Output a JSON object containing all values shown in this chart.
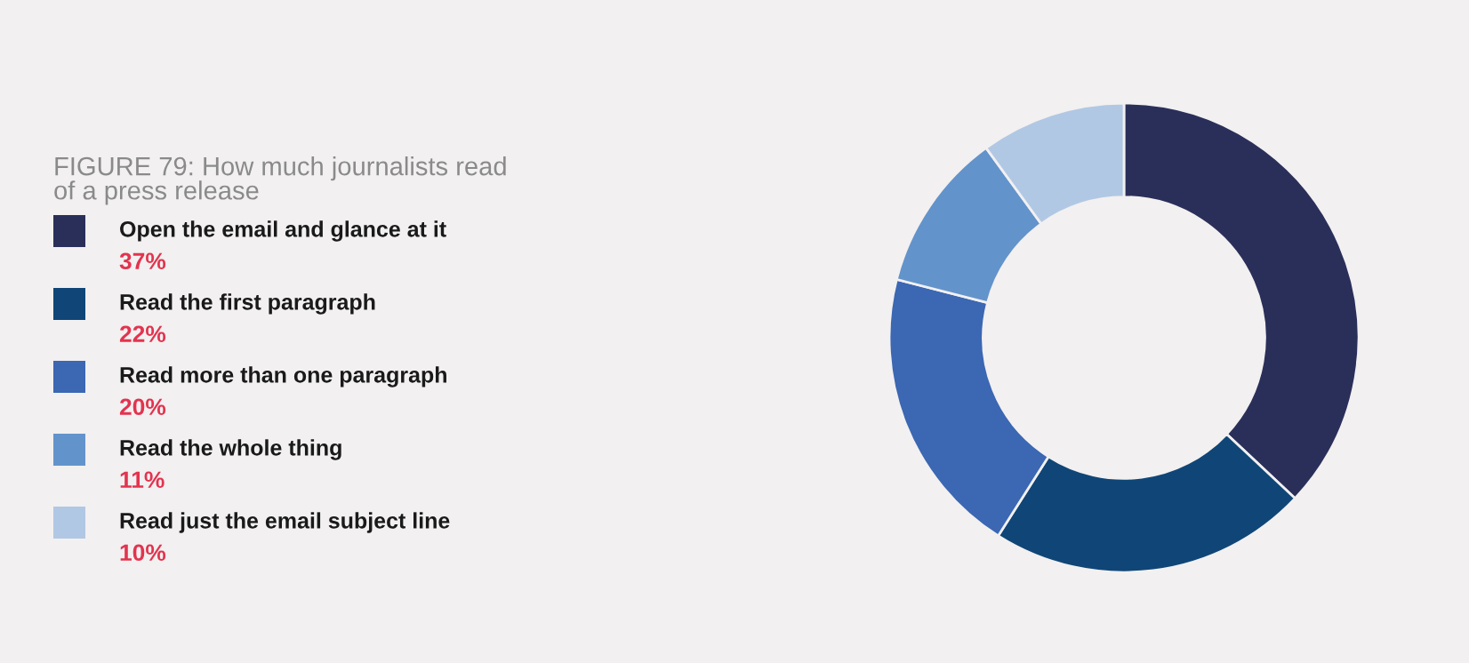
{
  "chart_data": {
    "type": "donut",
    "title": "FIGURE 79: How much journalists read of a press release",
    "categories": [
      "Open the email and glance at it",
      "Read the first paragraph",
      "Read more than one paragraph",
      "Read the whole thing",
      "Read just the email subject line"
    ],
    "values": [
      37,
      22,
      20,
      11,
      10
    ],
    "value_labels": [
      "37%",
      "22%",
      "20%",
      "11%",
      "10%"
    ],
    "colors": [
      "#2a2f5a",
      "#0f4677",
      "#3b67b3",
      "#6393cb",
      "#b1c8e4"
    ],
    "legend": "left"
  }
}
